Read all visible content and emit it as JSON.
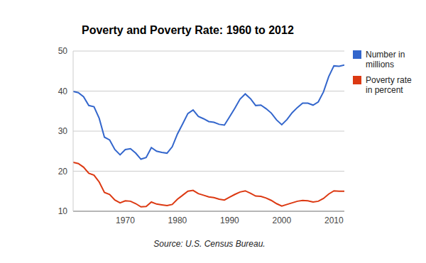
{
  "chart_data": {
    "type": "line",
    "title": "Poverty and Poverty Rate: 1960 to 2012",
    "annotations": [
      "Source: U.S. Census Bureau."
    ],
    "x": [
      1960,
      1961,
      1962,
      1963,
      1964,
      1965,
      1966,
      1967,
      1968,
      1969,
      1970,
      1971,
      1972,
      1973,
      1974,
      1975,
      1976,
      1977,
      1978,
      1979,
      1980,
      1981,
      1982,
      1983,
      1984,
      1985,
      1986,
      1987,
      1988,
      1989,
      1990,
      1991,
      1992,
      1993,
      1994,
      1995,
      1996,
      1997,
      1998,
      1999,
      2000,
      2001,
      2002,
      2003,
      2004,
      2005,
      2006,
      2007,
      2008,
      2009,
      2010,
      2011,
      2012
    ],
    "series": [
      {
        "name": "Number in millions",
        "color": "#3366cc",
        "values": [
          39.9,
          39.6,
          38.6,
          36.4,
          36.1,
          33.2,
          28.5,
          27.8,
          25.4,
          24.1,
          25.4,
          25.6,
          24.5,
          23.0,
          23.4,
          25.9,
          25.0,
          24.7,
          24.5,
          26.1,
          29.3,
          31.8,
          34.4,
          35.3,
          33.7,
          33.1,
          32.4,
          32.2,
          31.7,
          31.5,
          33.6,
          35.7,
          38.0,
          39.3,
          38.1,
          36.4,
          36.5,
          35.6,
          34.5,
          32.8,
          31.6,
          32.9,
          34.6,
          35.9,
          37.0,
          37.0,
          36.5,
          37.3,
          39.8,
          43.6,
          46.3,
          46.2,
          46.5
        ]
      },
      {
        "name": "Poverty rate in percent",
        "color": "#dc3912",
        "values": [
          22.2,
          21.9,
          21.0,
          19.5,
          19.0,
          17.3,
          14.7,
          14.2,
          12.8,
          12.1,
          12.6,
          12.5,
          11.9,
          11.1,
          11.2,
          12.3,
          11.8,
          11.6,
          11.4,
          11.7,
          13.0,
          14.0,
          15.0,
          15.2,
          14.4,
          14.0,
          13.6,
          13.4,
          13.0,
          12.8,
          13.5,
          14.2,
          14.8,
          15.1,
          14.5,
          13.8,
          13.7,
          13.3,
          12.7,
          11.9,
          11.3,
          11.7,
          12.1,
          12.5,
          12.7,
          12.6,
          12.3,
          12.5,
          13.2,
          14.3,
          15.1,
          15.0,
          15.0
        ]
      }
    ],
    "xlim": [
      1960,
      2012
    ],
    "xticks": [
      1970,
      1980,
      1990,
      2000,
      2010
    ],
    "ylim": [
      10,
      50
    ],
    "yticks": [
      10,
      20,
      30,
      40,
      50
    ],
    "grid": true,
    "legend": "right"
  }
}
